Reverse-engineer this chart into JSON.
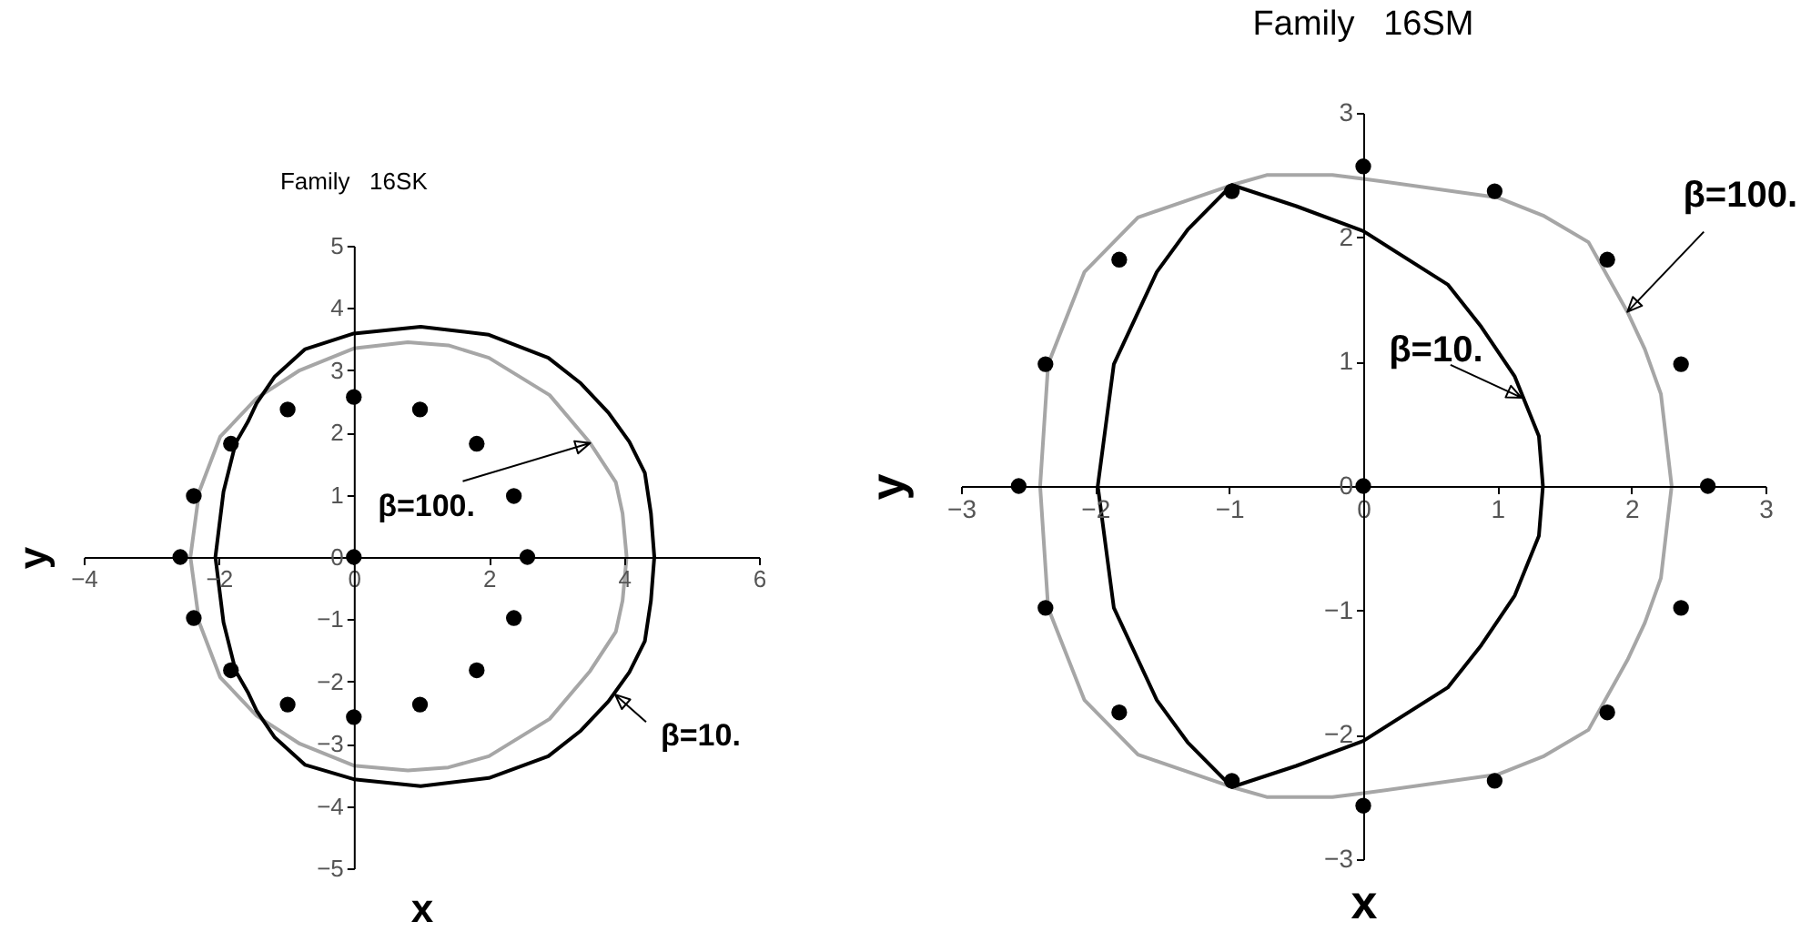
{
  "chart_data": [
    {
      "type": "scatter",
      "title": "Family   16SK",
      "xlabel": "x",
      "ylabel": "y",
      "xlim": [
        -4,
        6
      ],
      "xticks": [
        -4,
        -2,
        0,
        2,
        4,
        6
      ],
      "ylim": [
        -5,
        5
      ],
      "yticks": [
        -5,
        -4,
        -3,
        -2,
        -1,
        0,
        1,
        2,
        3,
        4,
        5
      ],
      "marker": "circle",
      "color": "#000000",
      "x": [
        0,
        2.57,
        2.37,
        1.82,
        0.98,
        0,
        -0.98,
        -1.82,
        -2.37,
        -2.57,
        -2.37,
        -1.82,
        -0.98,
        0,
        0.98,
        1.82,
        2.37
      ],
      "values": [
        0,
        0,
        0.98,
        1.82,
        2.37,
        2.57,
        2.37,
        1.82,
        0.98,
        0,
        -0.98,
        -1.82,
        -2.37,
        -2.57,
        -2.37,
        -1.82,
        -0.98
      ],
      "annotations": [
        "β=100.",
        "β=10."
      ]
    },
    {
      "type": "scatter",
      "title": "Family   16SM",
      "xlabel": "x",
      "ylabel": "y",
      "xlim": [
        -3,
        3
      ],
      "xticks": [
        -3,
        -2,
        -1,
        0,
        1,
        2,
        3
      ],
      "ylim": [
        -3,
        3
      ],
      "yticks": [
        -3,
        -2,
        -1,
        0,
        1,
        2,
        3
      ],
      "marker": "circle",
      "color": "#000000",
      "x": [
        0,
        2.57,
        2.37,
        1.82,
        0.98,
        0,
        -0.98,
        -1.82,
        -2.37,
        -2.57,
        -2.37,
        -1.82,
        -0.98,
        0,
        0.98,
        1.82,
        2.37
      ],
      "values": [
        0,
        0,
        0.98,
        1.82,
        2.37,
        2.57,
        2.37,
        1.82,
        0.98,
        0,
        -0.98,
        -1.82,
        -2.37,
        -2.57,
        -2.37,
        -1.82,
        -0.98
      ],
      "annotations": [
        "β=100.",
        "β=10."
      ]
    }
  ]
}
